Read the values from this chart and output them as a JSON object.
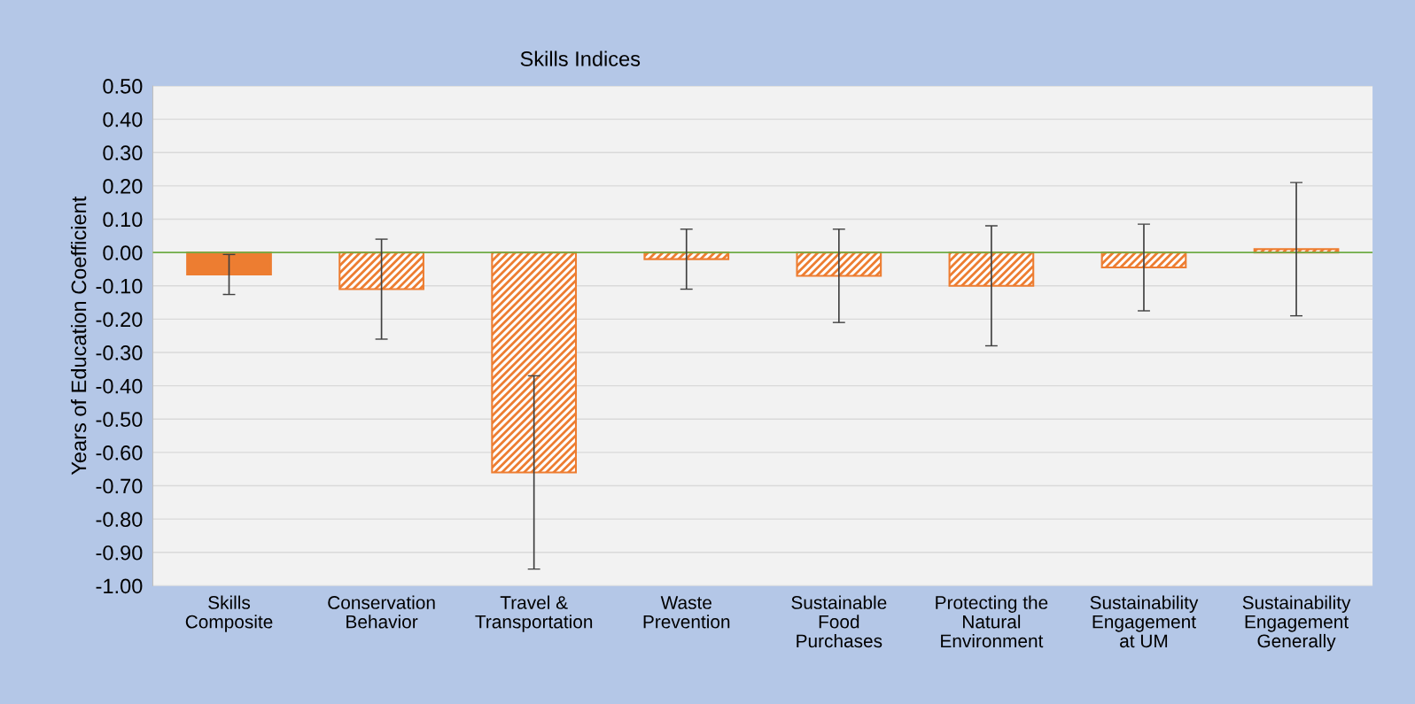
{
  "chart_data": {
    "type": "bar",
    "title": "Skills Indices",
    "ylabel": "Years of Education Coefficient",
    "categories": [
      "Skills\nComposite",
      "Conservation\nBehavior",
      "Travel &\nTransportation",
      "Waste\nPrevention",
      "Sustainable\nFood\nPurchases",
      "Protecting the\nNatural\nEnvironment",
      "Sustainability\nEngagement\nat UM",
      "Sustainability\nEngagement\nGenerally"
    ],
    "values": [
      -0.066,
      -0.11,
      -0.66,
      -0.02,
      -0.07,
      -0.1,
      -0.045,
      0.01
    ],
    "errors": [
      0.06,
      0.15,
      0.29,
      0.09,
      0.14,
      0.18,
      0.13,
      0.2
    ],
    "color": "#ed7d31",
    "ylim": [
      -1.0,
      0.5
    ],
    "yticks": [
      {
        "value": -1.0,
        "label": "-1.00"
      },
      {
        "value": -0.9,
        "label": "-0.90"
      },
      {
        "value": -0.8,
        "label": "-0.80"
      },
      {
        "value": -0.7,
        "label": "-0.70"
      },
      {
        "value": -0.6,
        "label": "-0.60"
      },
      {
        "value": -0.5,
        "label": "-0.50"
      },
      {
        "value": -0.4,
        "label": "-0.40"
      },
      {
        "value": -0.3,
        "label": "-0.30"
      },
      {
        "value": -0.2,
        "label": "-0.20"
      },
      {
        "value": -0.1,
        "label": "-0.10"
      },
      {
        "value": 0.0,
        "label": "0.00"
      },
      {
        "value": 0.1,
        "label": "0.10"
      },
      {
        "value": 0.2,
        "label": "0.20"
      },
      {
        "value": 0.3,
        "label": "0.30"
      },
      {
        "value": 0.4,
        "label": "0.40"
      },
      {
        "value": 0.5,
        "label": "0.50"
      }
    ],
    "ref_lines": [
      {
        "axis": "y",
        "value": 0,
        "color": "#70ad47"
      }
    ],
    "grid": "y",
    "legend": false
  }
}
